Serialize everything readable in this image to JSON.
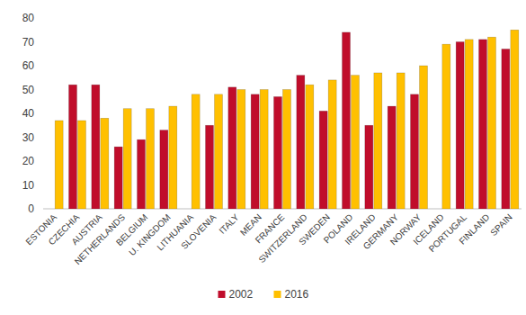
{
  "chart_data": {
    "type": "bar",
    "categories": [
      "ESTONIA",
      "CZECHIA",
      "AUSTRIA",
      "NETHERLANDS",
      "BELGIUM",
      "U. KINGDOM",
      "LITHUANIA",
      "SLOVENIA",
      "ITALY",
      "MEAN",
      "FRANCE",
      "SWITZERLAND",
      "SWEDEN",
      "POLAND",
      "IRELAND",
      "GERMANY",
      "NORWAY",
      "ICELAND",
      "PORTUGAL",
      "FINLAND",
      "SPAIN"
    ],
    "series": [
      {
        "name": "2002",
        "color": "#c00d2b",
        "values": [
          null,
          52,
          52,
          26,
          29,
          33,
          null,
          35,
          51,
          48,
          47,
          56,
          41,
          74,
          35,
          43,
          48,
          null,
          70,
          71,
          67
        ]
      },
      {
        "name": "2016",
        "color": "#ffc000",
        "values": [
          37,
          37,
          38,
          42,
          42,
          43,
          48,
          48,
          50,
          50,
          50,
          52,
          54,
          56,
          57,
          57,
          60,
          69,
          71,
          72,
          75
        ]
      }
    ],
    "ylim": [
      0,
      80
    ],
    "yticks": [
      0,
      10,
      20,
      30,
      40,
      50,
      60,
      70,
      80
    ],
    "grid": false,
    "legend": "bottom"
  }
}
